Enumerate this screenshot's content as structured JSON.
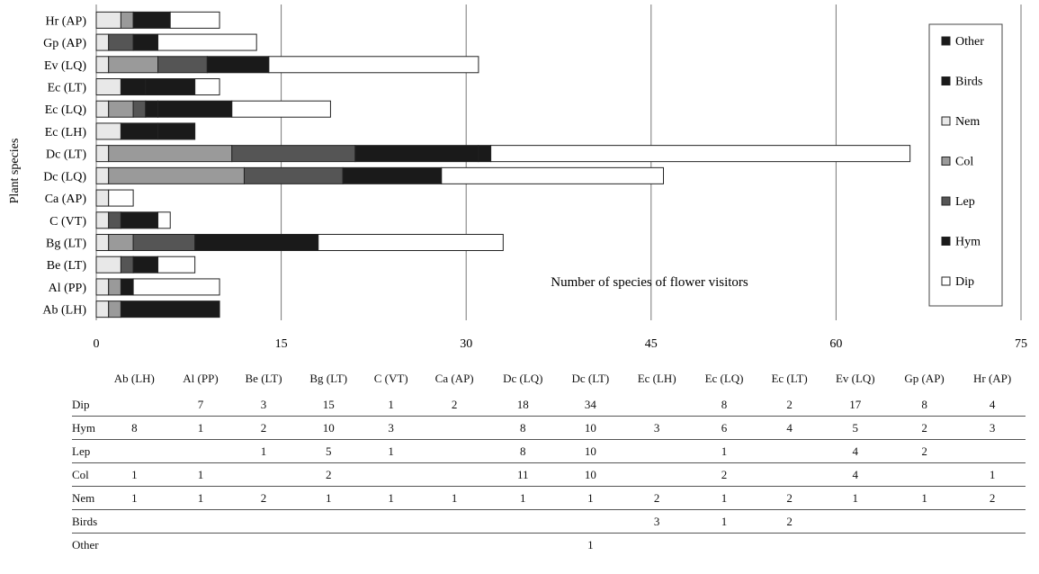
{
  "chart_data": {
    "type": "bar",
    "orientation": "horizontal",
    "stacked": true,
    "ylabel": "Plant species",
    "annotation": "Number of species of flower visitors",
    "xlim": [
      0,
      75
    ],
    "xticks": [
      0,
      15,
      30,
      45,
      60,
      75
    ],
    "grid": true,
    "legend_position": "right",
    "categories": [
      "Ab (LH)",
      "Al (PP)",
      "Be (LT)",
      "Bg (LT)",
      "C (VT)",
      "Ca (AP)",
      "Dc (LQ)",
      "Dc (LT)",
      "Ec (LH)",
      "Ec (LQ)",
      "Ec (LT)",
      "Ev (LQ)",
      "Gp (AP)",
      "Hr (AP)"
    ],
    "series": [
      {
        "name": "Dip",
        "color": "#ffffff",
        "values": [
          0,
          7,
          3,
          15,
          1,
          2,
          18,
          34,
          0,
          8,
          2,
          17,
          8,
          4
        ]
      },
      {
        "name": "Hym",
        "color": "#1a1a1a",
        "values": [
          8,
          1,
          2,
          10,
          3,
          0,
          8,
          10,
          3,
          6,
          4,
          5,
          2,
          3
        ]
      },
      {
        "name": "Lep",
        "color": "#555555",
        "values": [
          0,
          0,
          1,
          5,
          1,
          0,
          8,
          10,
          0,
          1,
          0,
          4,
          2,
          0
        ]
      },
      {
        "name": "Col",
        "color": "#9a9a9a",
        "values": [
          1,
          1,
          0,
          2,
          0,
          0,
          11,
          10,
          0,
          2,
          0,
          4,
          0,
          1
        ]
      },
      {
        "name": "Nem",
        "color": "#e8e8e8",
        "values": [
          1,
          1,
          2,
          1,
          1,
          1,
          1,
          1,
          2,
          1,
          2,
          1,
          1,
          2
        ]
      },
      {
        "name": "Birds",
        "color": "#1a1a1a",
        "values": [
          0,
          0,
          0,
          0,
          0,
          0,
          0,
          0,
          3,
          1,
          2,
          0,
          0,
          0
        ]
      },
      {
        "name": "Other",
        "color": "#1a1a1a",
        "values": [
          0,
          0,
          0,
          0,
          0,
          0,
          0,
          1,
          0,
          0,
          0,
          0,
          0,
          0
        ]
      }
    ],
    "table": {
      "header": [
        "Ab (LH)",
        "Al (PP)",
        "Be (LT)",
        "Bg (LT)",
        "C (VT)",
        "Ca (AP)",
        "Dc (LQ)",
        "Dc (LT)",
        "Ec (LH)",
        "Ec (LQ)",
        "Ec (LT)",
        "Ev (LQ)",
        "Gp (AP)",
        "Hr (AP)"
      ],
      "rows": [
        {
          "label": "Dip",
          "cells": [
            "",
            "7",
            "3",
            "15",
            "1",
            "2",
            "18",
            "34",
            "",
            "8",
            "2",
            "17",
            "8",
            "4"
          ]
        },
        {
          "label": "Hym",
          "cells": [
            "8",
            "1",
            "2",
            "10",
            "3",
            "",
            "8",
            "10",
            "3",
            "6",
            "4",
            "5",
            "2",
            "3"
          ]
        },
        {
          "label": "Lep",
          "cells": [
            "",
            "",
            "1",
            "5",
            "1",
            "",
            "8",
            "10",
            "",
            "1",
            "",
            "4",
            "2",
            ""
          ]
        },
        {
          "label": "Col",
          "cells": [
            "1",
            "1",
            "",
            "2",
            "",
            "",
            "11",
            "10",
            "",
            "2",
            "",
            "4",
            "",
            "1"
          ]
        },
        {
          "label": "Nem",
          "cells": [
            "1",
            "1",
            "2",
            "1",
            "1",
            "1",
            "1",
            "1",
            "2",
            "1",
            "2",
            "1",
            "1",
            "2"
          ]
        },
        {
          "label": "Birds",
          "cells": [
            "",
            "",
            "",
            "",
            "",
            "",
            "",
            "",
            "3",
            "1",
            "2",
            "",
            "",
            ""
          ]
        },
        {
          "label": "Other",
          "cells": [
            "",
            "",
            "",
            "",
            "",
            "",
            "",
            "1",
            "",
            "",
            "",
            "",
            "",
            ""
          ]
        }
      ]
    }
  }
}
